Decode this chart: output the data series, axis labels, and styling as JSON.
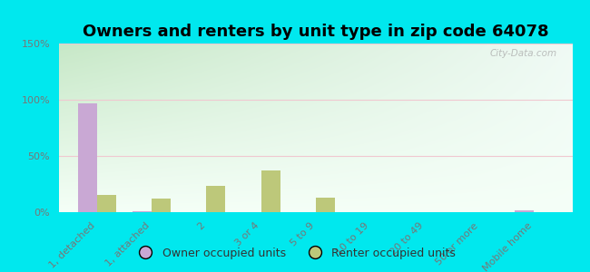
{
  "title": "Owners and renters by unit type in zip code 64078",
  "categories": [
    "1, detached",
    "1, attached",
    "2",
    "3 or 4",
    "5 to 9",
    "10 to 19",
    "20 to 49",
    "50 or more",
    "Mobile home"
  ],
  "owner_values": [
    97,
    1,
    0,
    0,
    0,
    0,
    0,
    0,
    2
  ],
  "renter_values": [
    15,
    12,
    23,
    37,
    13,
    0,
    0,
    0,
    0
  ],
  "owner_color": "#c9a8d4",
  "renter_color": "#bdc87a",
  "ylim": [
    0,
    150
  ],
  "yticks": [
    0,
    50,
    100,
    150
  ],
  "ytick_labels": [
    "0%",
    "50%",
    "100%",
    "150%"
  ],
  "bg_color_top_left": "#c8e6c0",
  "bg_color_top_right": "#e8f5f0",
  "bg_color_bottom": "#f0faf5",
  "outer_bg": "#00e8ee",
  "bar_width": 0.35,
  "title_fontsize": 13,
  "legend_owner": "Owner occupied units",
  "legend_renter": "Renter occupied units",
  "watermark": "City-Data.com",
  "grid_color": "#f0c8d0",
  "tick_color": "#777777",
  "tick_fontsize": 8
}
